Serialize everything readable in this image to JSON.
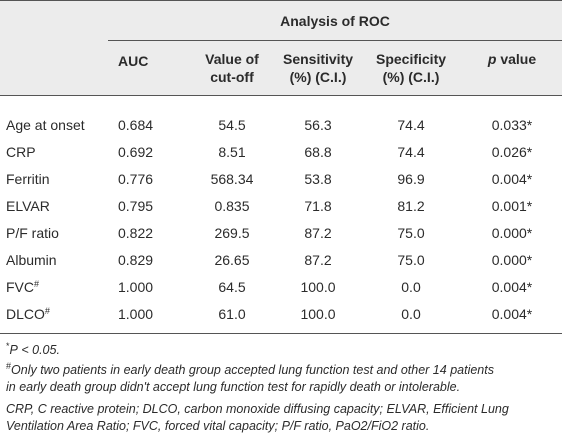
{
  "table": {
    "group_header": "Analysis of ROC",
    "columns": [
      [
        "AUC"
      ],
      [
        "Value of",
        "cut-off"
      ],
      [
        "Sensitivity",
        "(%) (C.I.)"
      ],
      [
        "Specificity",
        "(%) (C.I.)"
      ],
      {
        "italic": "p",
        "text": "value"
      }
    ],
    "rows": [
      [
        {
          "text": "Age at onset"
        },
        "0.684",
        "54.5",
        "56.3",
        "74.4",
        "0.033*"
      ],
      [
        {
          "text": "CRP"
        },
        "0.692",
        "8.51",
        "68.8",
        "74.4",
        "0.026*"
      ],
      [
        {
          "text": "Ferritin"
        },
        "0.776",
        "568.34",
        "53.8",
        "96.9",
        "0.004*"
      ],
      [
        {
          "text": "ELVAR"
        },
        "0.795",
        "0.835",
        "71.8",
        "81.2",
        "0.001*"
      ],
      [
        {
          "text": "P/F ratio"
        },
        "0.822",
        "269.5",
        "87.2",
        "75.0",
        "0.000*"
      ],
      [
        {
          "text": "Albumin"
        },
        "0.829",
        "26.65",
        "87.2",
        "75.0",
        "0.000*"
      ],
      [
        {
          "text": "FVC",
          "sup": "#"
        },
        "1.000",
        "64.5",
        "100.0",
        "0.0",
        "0.004*"
      ],
      [
        {
          "text": "DLCO",
          "sup": "#"
        },
        "1.000",
        "61.0",
        "100.0",
        "0.0",
        "0.004*"
      ]
    ]
  },
  "footnotes": [
    {
      "mark": "*",
      "italic": "P",
      "text": "< 0.05."
    },
    {
      "mark": "#",
      "lines": [
        "Only two patients in early death group accepted lung function test and other 14 patients",
        "in early death group didn't accept lung function test for rapidly death or intolerable."
      ]
    },
    {
      "lines": [
        "CRP, C reactive protein; DLCO, carbon monoxide diffusing capacity; ELVAR, Efficient Lung",
        "Ventilation Area Ratio; FVC, forced vital capacity; P/F ratio, PaO2/FiO2 ratio."
      ]
    }
  ]
}
